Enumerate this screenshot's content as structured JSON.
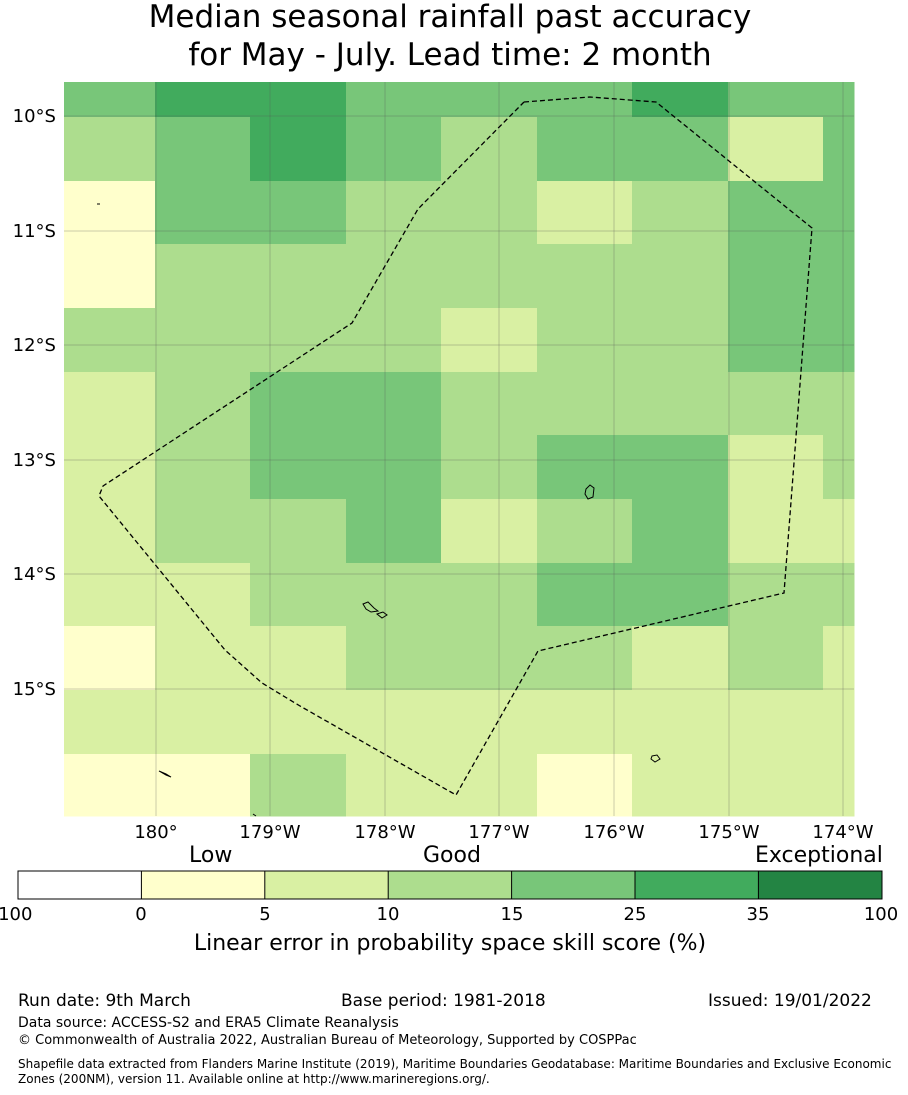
{
  "title": {
    "line1": "Median seasonal rainfall past accuracy",
    "line2": "for May - July. Lead time: 2 month"
  },
  "map": {
    "lon_labels": [
      "180°",
      "179°W",
      "178°W",
      "177°W",
      "176°W",
      "175°W",
      "174°W"
    ],
    "lat_labels": [
      "10°S",
      "11°S",
      "12°S",
      "13°S",
      "14°S",
      "15°S"
    ]
  },
  "legend": {
    "word_low": "Low",
    "word_good": "Good",
    "word_exceptional": "Exceptional",
    "tick_labels": [
      "-100",
      "0",
      "5",
      "10",
      "15",
      "25",
      "35",
      "100"
    ],
    "colors": [
      "#ffffff",
      "#ffffcc",
      "#d9f0a3",
      "#addd8e",
      "#78c679",
      "#41ab5d",
      "#238443"
    ],
    "axis_title": "Linear error in probability space skill score (%)"
  },
  "grid_data": {
    "palette": [
      "#ffffcc",
      "#d9f0a3",
      "#addd8e",
      "#78c679",
      "#41ab5d"
    ],
    "rows": [
      [
        3,
        4,
        4,
        3,
        3,
        3,
        4,
        3,
        3
      ],
      [
        2,
        3,
        4,
        3,
        2,
        3,
        3,
        1,
        3
      ],
      [
        0,
        3,
        3,
        2,
        2,
        1,
        2,
        3,
        3
      ],
      [
        0,
        2,
        2,
        2,
        2,
        2,
        2,
        3,
        3
      ],
      [
        2,
        2,
        2,
        2,
        1,
        2,
        2,
        3,
        3
      ],
      [
        1,
        2,
        3,
        3,
        2,
        2,
        2,
        2,
        2
      ],
      [
        1,
        2,
        3,
        3,
        2,
        3,
        3,
        1,
        2
      ],
      [
        1,
        2,
        2,
        3,
        1,
        2,
        3,
        1,
        1
      ],
      [
        1,
        1,
        2,
        2,
        2,
        3,
        3,
        2,
        2
      ],
      [
        0,
        1,
        1,
        2,
        2,
        2,
        1,
        2,
        1
      ],
      [
        1,
        1,
        1,
        1,
        1,
        1,
        1,
        1,
        1
      ],
      [
        0,
        0,
        2,
        1,
        1,
        0,
        1,
        1,
        1
      ]
    ]
  },
  "footer": {
    "run_date": "Run date: 9th March",
    "base_period": "Base period: 1981-2018",
    "issued": "Issued: 19/01/2022",
    "data_source": "Data source: ACCESS-S2 and ERA5 Climate Reanalysis",
    "copyright": "© Commonwealth of Australia 2022, Australian Bureau of Meteorology, Supported by COSPPac",
    "shapefile_line1": "Shapefile data extracted from Flanders Marine Institute (2019), Maritime Boundaries Geodatabase: Maritime Boundaries and Exclusive Economic",
    "shapefile_line2": "Zones (200NM), version 11. Available online at http://www.marineregions.org/."
  }
}
